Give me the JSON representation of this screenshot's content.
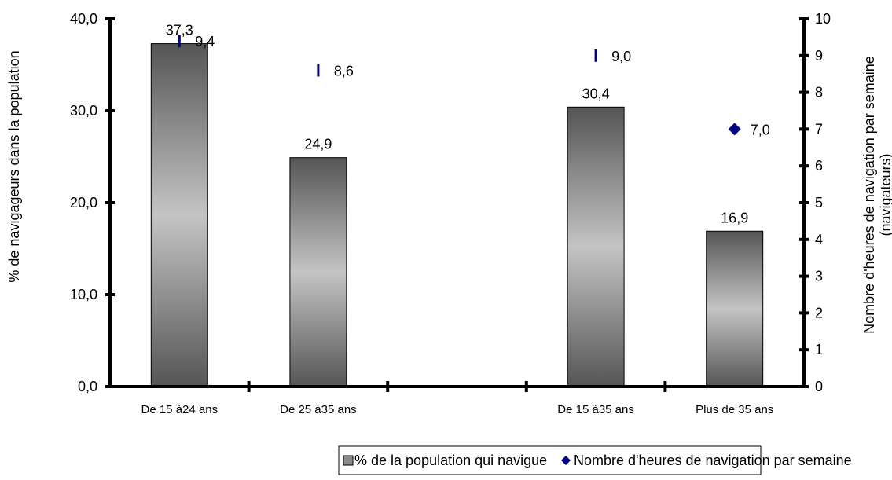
{
  "chart_data": {
    "type": "bar",
    "categories": [
      "De 15 à24 ans",
      "De 25 à35 ans",
      "",
      "De 15 à35 ans",
      "Plus de 35 ans"
    ],
    "ylabel": "% de navigageurs dans la population",
    "y2label_line1": "Nombre d'heures de navigation par semaine",
    "y2label_line2": "(navigateurs)",
    "ylim": [
      0,
      40
    ],
    "y2lim": [
      0,
      10
    ],
    "yticks": [
      "0,0",
      "10,0",
      "20,0",
      "30,0",
      "40,0"
    ],
    "y2ticks": [
      "0",
      "1",
      "2",
      "3",
      "4",
      "5",
      "6",
      "7",
      "8",
      "9",
      "10"
    ],
    "grid": false,
    "legend_position": "bottom",
    "series": [
      {
        "name": "% de la population qui navigue",
        "kind": "bar",
        "axis": "left",
        "values": [
          37.3,
          24.9,
          null,
          30.4,
          16.9
        ],
        "labels": [
          "37,3",
          "24,9",
          "",
          "30,4",
          "16,9"
        ]
      },
      {
        "name": "Nombre d'heures de navigation par semaine",
        "kind": "marker",
        "axis": "right",
        "values": [
          9.4,
          8.6,
          null,
          9.0,
          7.0
        ],
        "labels": [
          "9,4",
          "8,6",
          "",
          "9,0",
          "7,0"
        ],
        "markers": [
          "dash",
          "dash",
          "",
          "dash",
          "diamond"
        ]
      }
    ],
    "colors": {
      "marker": "#000080",
      "bar_dark": "#555555",
      "bar_light": "#c0c0c0"
    }
  }
}
